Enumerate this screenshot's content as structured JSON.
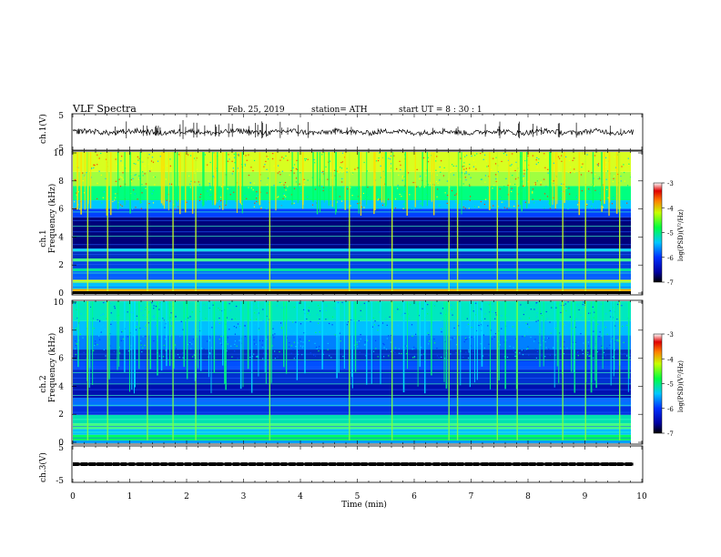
{
  "header": {
    "title": "VLF  Spectra",
    "date": "Feb. 25, 2019",
    "station": "station= ATH",
    "start": "start  UT  =   8  : 30 : 1"
  },
  "chart_data": [
    {
      "type": "line",
      "ylabel": "ch.1(V)",
      "ylim": [
        -5,
        5
      ],
      "yticks": [
        "5",
        "-5"
      ],
      "baseline": 0,
      "x_range_min": [
        0,
        9.85
      ]
    },
    {
      "type": "heatmap",
      "ylabel_line1": "ch.1",
      "ylabel_line2": "Frequency  (kHz)",
      "ylim": [
        0,
        10
      ],
      "yticks": [
        "0",
        "2",
        "4",
        "6",
        "8",
        "10"
      ],
      "colorbar": {
        "label": "log(PSD)(V²/Hz)",
        "ticks": [
          "-3",
          "-4",
          "-5",
          "-6",
          "-7"
        ],
        "range": [
          -7,
          -3
        ]
      }
    },
    {
      "type": "heatmap",
      "ylabel_line1": "ch.2",
      "ylabel_line2": "Frequency  (kHz)",
      "ylim": [
        0,
        10
      ],
      "yticks": [
        "0",
        "2",
        "4",
        "6",
        "8",
        "10"
      ],
      "colorbar": {
        "label": "log(PSD)(V²/Hz)",
        "ticks": [
          "-3",
          "-4",
          "-5",
          "-6",
          "-7"
        ],
        "range": [
          -7,
          -3
        ]
      }
    },
    {
      "type": "line",
      "ylabel": "ch.3(V)",
      "ylim": [
        -5,
        5
      ],
      "yticks": [
        "5",
        "-5"
      ],
      "baseline": 0,
      "xlabel": "Time  (min)",
      "xlim": [
        0,
        10
      ],
      "xticks": [
        "0",
        "1",
        "2",
        "3",
        "4",
        "5",
        "6",
        "7",
        "8",
        "9",
        "10"
      ]
    }
  ]
}
